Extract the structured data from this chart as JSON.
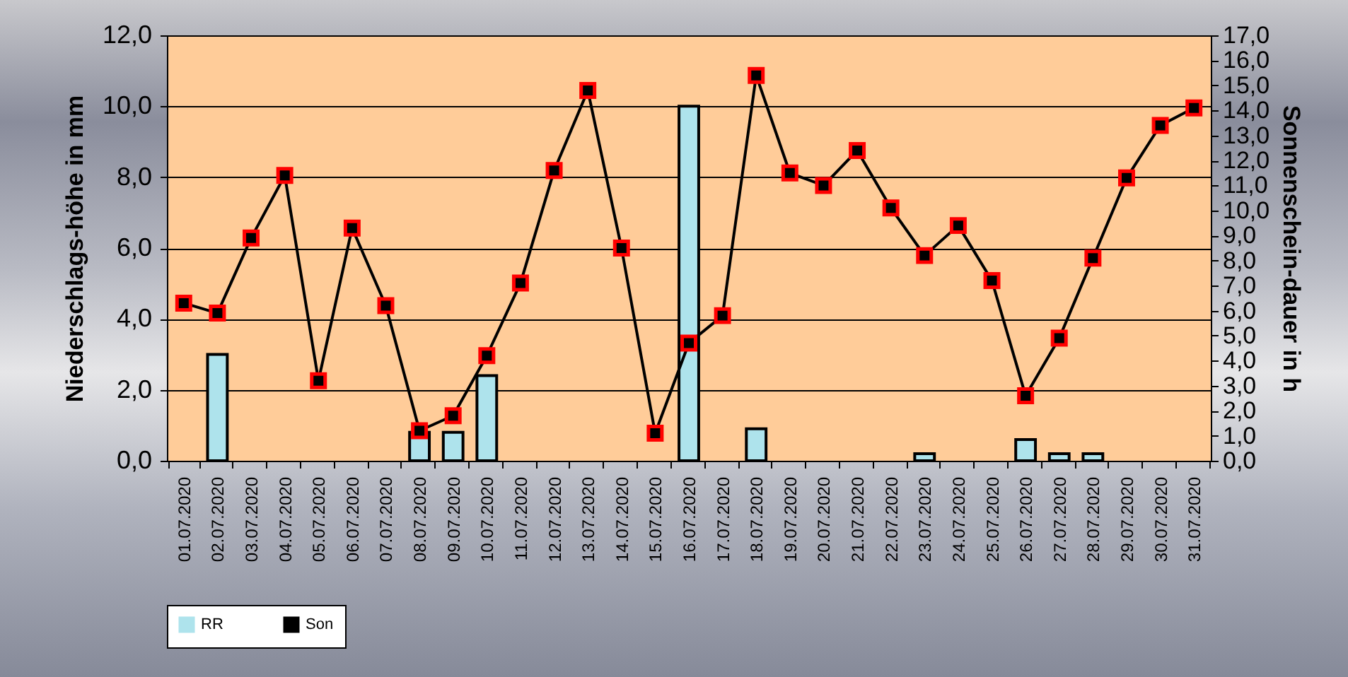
{
  "chart_data": {
    "type": "bar",
    "xlabel": null,
    "ylabel": "Niederschlags-höhe in mm",
    "y2label": "Sonnenschein-dauer in h",
    "categories": [
      "01.07.2020",
      "02.07.2020",
      "03.07.2020",
      "04.07.2020",
      "05.07.2020",
      "06.07.2020",
      "07.07.2020",
      "08.07.2020",
      "09.07.2020",
      "10.07.2020",
      "11.07.2020",
      "12.07.2020",
      "13.07.2020",
      "14.07.2020",
      "15.07.2020",
      "16.07.2020",
      "17.07.2020",
      "18.07.2020",
      "19.07.2020",
      "20.07.2020",
      "21.07.2020",
      "22.07.2020",
      "23.07.2020",
      "24.07.2020",
      "25.07.2020",
      "26.07.2020",
      "27.07.2020",
      "28.07.2020",
      "29.07.2020",
      "30.07.2020",
      "31.07.2020"
    ],
    "series": [
      {
        "name": "RR",
        "color": "#aee3ec",
        "values": [
          null,
          3.0,
          null,
          null,
          null,
          null,
          null,
          0.8,
          0.8,
          2.4,
          null,
          null,
          null,
          null,
          null,
          10.0,
          null,
          0.9,
          null,
          null,
          null,
          null,
          0.2,
          null,
          null,
          0.6,
          0.2,
          0.2,
          null,
          null,
          null
        ]
      },
      {
        "name": "Son",
        "type": "line",
        "axis": "y2",
        "color": "#000000",
        "values": [
          6.3,
          5.9,
          8.9,
          11.4,
          3.2,
          9.3,
          6.2,
          1.2,
          1.8,
          4.2,
          7.1,
          11.6,
          14.8,
          8.5,
          1.1,
          4.7,
          5.8,
          15.4,
          11.5,
          11.0,
          12.4,
          10.1,
          8.2,
          9.4,
          7.2,
          2.6,
          4.9,
          8.1,
          11.3,
          13.4,
          14.1
        ]
      }
    ],
    "ylim": [
      0,
      12
    ],
    "yticks": [
      {
        "value": 0,
        "label": "0,0"
      },
      {
        "value": 2,
        "label": "2,0"
      },
      {
        "value": 4,
        "label": "4,0"
      },
      {
        "value": 6,
        "label": "6,0"
      },
      {
        "value": 8,
        "label": "8,0"
      },
      {
        "value": 10,
        "label": "10,0"
      },
      {
        "value": 12,
        "label": "12,0"
      }
    ],
    "y2lim": [
      0,
      17
    ],
    "y2ticks": [
      {
        "value": 0,
        "label": "0,0"
      },
      {
        "value": 1,
        "label": "1,0"
      },
      {
        "value": 2,
        "label": "2,0"
      },
      {
        "value": 3,
        "label": "3,0"
      },
      {
        "value": 4,
        "label": "4,0"
      },
      {
        "value": 5,
        "label": "5,0"
      },
      {
        "value": 6,
        "label": "6,0"
      },
      {
        "value": 7,
        "label": "7,0"
      },
      {
        "value": 8,
        "label": "8,0"
      },
      {
        "value": 9,
        "label": "9,0"
      },
      {
        "value": 10,
        "label": "10,0"
      },
      {
        "value": 11,
        "label": "11,0"
      },
      {
        "value": 12,
        "label": "12,0"
      },
      {
        "value": 13,
        "label": "13,0"
      },
      {
        "value": 14,
        "label": "14,0"
      },
      {
        "value": 15,
        "label": "15,0"
      },
      {
        "value": 16,
        "label": "16,0"
      },
      {
        "value": 17,
        "label": "17,0"
      }
    ],
    "grid": "y",
    "legend": "bottom",
    "marker": "square",
    "line_style": "solid"
  }
}
